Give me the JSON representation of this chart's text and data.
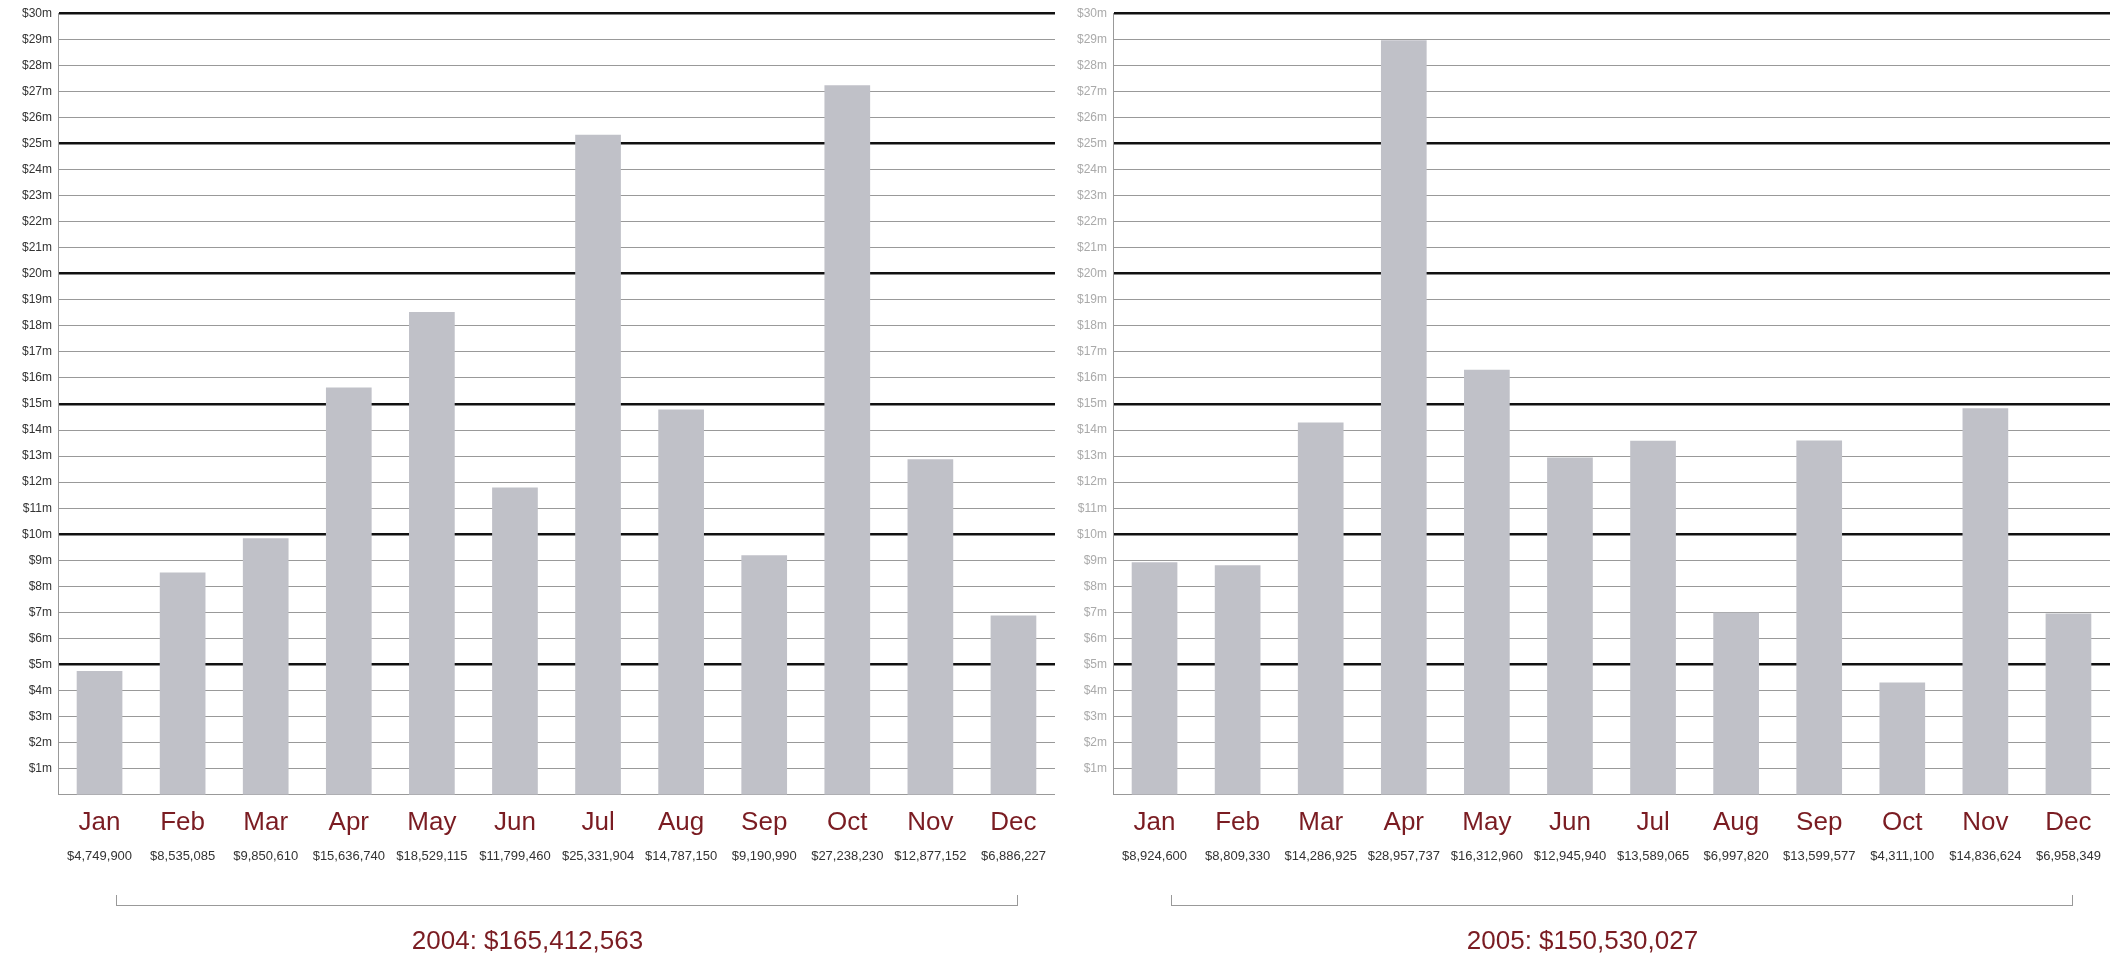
{
  "chart_data": [
    {
      "type": "bar",
      "xlabel": "2004: $165,412,563",
      "categories": [
        "Jan",
        "Feb",
        "Mar",
        "Apr",
        "May",
        "Jun",
        "Jul",
        "Aug",
        "Sep",
        "Oct",
        "Nov",
        "Dec"
      ],
      "series": [
        {
          "color": "#c0c1c8",
          "values": [
            4749900,
            8535085,
            9850610,
            15636740,
            18529115,
            11799460,
            25331904,
            14787150,
            9190990,
            27238230,
            12877152,
            6886227
          ],
          "value_labels": [
            "$4,749,900",
            "$8,535,085",
            "$9,850,610",
            "$15,636,740",
            "$18,529,115",
            "$11,799,460",
            "$25,331,904",
            "$14,787,150",
            "$9,190,990",
            "$27,238,230",
            "$12,877,152",
            "$6,886,227"
          ]
        }
      ],
      "ylim": [
        0,
        30000000
      ],
      "yticks": [
        {
          "value": 1000000,
          "label": "$1m"
        },
        {
          "value": 2000000,
          "label": "$2m"
        },
        {
          "value": 3000000,
          "label": "$3m"
        },
        {
          "value": 4000000,
          "label": "$4m"
        },
        {
          "value": 5000000,
          "label": "$5m"
        },
        {
          "value": 6000000,
          "label": "$6m"
        },
        {
          "value": 7000000,
          "label": "$7m"
        },
        {
          "value": 8000000,
          "label": "$8m"
        },
        {
          "value": 9000000,
          "label": "$9m"
        },
        {
          "value": 10000000,
          "label": "$10m"
        },
        {
          "value": 11000000,
          "label": "$11m"
        },
        {
          "value": 12000000,
          "label": "$12m"
        },
        {
          "value": 13000000,
          "label": "$13m"
        },
        {
          "value": 14000000,
          "label": "$14m"
        },
        {
          "value": 15000000,
          "label": "$15m"
        },
        {
          "value": 16000000,
          "label": "$16m"
        },
        {
          "value": 17000000,
          "label": "$17m"
        },
        {
          "value": 18000000,
          "label": "$18m"
        },
        {
          "value": 19000000,
          "label": "$19m"
        },
        {
          "value": 20000000,
          "label": "$20m"
        },
        {
          "value": 21000000,
          "label": "$21m"
        },
        {
          "value": 22000000,
          "label": "$22m"
        },
        {
          "value": 23000000,
          "label": "$23m"
        },
        {
          "value": 24000000,
          "label": "$24m"
        },
        {
          "value": 25000000,
          "label": "$25m"
        },
        {
          "value": 26000000,
          "label": "$26m"
        },
        {
          "value": 27000000,
          "label": "$27m"
        },
        {
          "value": 28000000,
          "label": "$28m"
        },
        {
          "value": 29000000,
          "label": "$29m"
        },
        {
          "value": 30000000,
          "label": "$30m"
        }
      ],
      "grid": "y"
    },
    {
      "type": "bar",
      "xlabel": "2005: $150,530,027",
      "categories": [
        "Jan",
        "Feb",
        "Mar",
        "Apr",
        "May",
        "Jun",
        "Jul",
        "Aug",
        "Sep",
        "Oct",
        "Nov",
        "Dec"
      ],
      "series": [
        {
          "color": "#c0c1c8",
          "values": [
            8924600,
            8809330,
            14286925,
            28957737,
            16312960,
            12945940,
            13589065,
            6997820,
            13599577,
            4311100,
            14836624,
            6958349
          ],
          "value_labels": [
            "$8,924,600",
            "$8,809,330",
            "$14,286,925",
            "$28,957,737",
            "$16,312,960",
            "$12,945,940",
            "$13,589,065",
            "$6,997,820",
            "$13,599,577",
            "$4,311,100",
            "$14,836,624",
            "$6,958,349"
          ]
        }
      ],
      "ylim": [
        0,
        30000000
      ],
      "yticks": [
        {
          "value": 1000000,
          "label": "$1m"
        },
        {
          "value": 2000000,
          "label": "$2m"
        },
        {
          "value": 3000000,
          "label": "$3m"
        },
        {
          "value": 4000000,
          "label": "$4m"
        },
        {
          "value": 5000000,
          "label": "$5m"
        },
        {
          "value": 6000000,
          "label": "$6m"
        },
        {
          "value": 7000000,
          "label": "$7m"
        },
        {
          "value": 8000000,
          "label": "$8m"
        },
        {
          "value": 9000000,
          "label": "$9m"
        },
        {
          "value": 10000000,
          "label": "$10m"
        },
        {
          "value": 11000000,
          "label": "$11m"
        },
        {
          "value": 12000000,
          "label": "$12m"
        },
        {
          "value": 13000000,
          "label": "$13m"
        },
        {
          "value": 14000000,
          "label": "$14m"
        },
        {
          "value": 15000000,
          "label": "$15m"
        },
        {
          "value": 16000000,
          "label": "$16m"
        },
        {
          "value": 17000000,
          "label": "$17m"
        },
        {
          "value": 18000000,
          "label": "$18m"
        },
        {
          "value": 19000000,
          "label": "$19m"
        },
        {
          "value": 20000000,
          "label": "$20m"
        },
        {
          "value": 21000000,
          "label": "$21m"
        },
        {
          "value": 22000000,
          "label": "$22m"
        },
        {
          "value": 23000000,
          "label": "$23m"
        },
        {
          "value": 24000000,
          "label": "$24m"
        },
        {
          "value": 25000000,
          "label": "$25m"
        },
        {
          "value": 26000000,
          "label": "$26m"
        },
        {
          "value": 27000000,
          "label": "$27m"
        },
        {
          "value": 28000000,
          "label": "$28m"
        },
        {
          "value": 29000000,
          "label": "$29m"
        },
        {
          "value": 30000000,
          "label": "$30m"
        }
      ],
      "grid": "y"
    }
  ]
}
